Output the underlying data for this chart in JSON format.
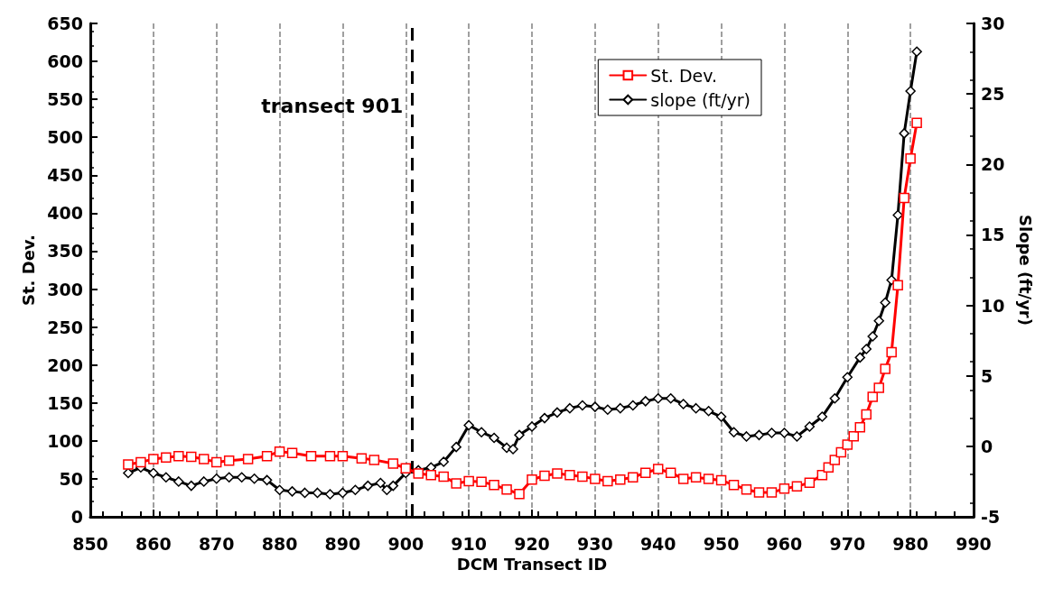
{
  "chart_data": {
    "type": "line",
    "xlabel": "DCM Transect ID",
    "ylabel": "St. Dev.",
    "y2label": "Slope (ft/yr)",
    "xlim": [
      850,
      990
    ],
    "xticks": [
      850,
      860,
      870,
      880,
      890,
      900,
      910,
      920,
      930,
      940,
      950,
      960,
      970,
      980,
      990
    ],
    "ylim": [
      0,
      650
    ],
    "yticks": [
      0,
      50,
      100,
      150,
      200,
      250,
      300,
      350,
      400,
      450,
      500,
      550,
      600,
      650
    ],
    "y2lim": [
      -5,
      30
    ],
    "y2ticks": [
      -5,
      0,
      5,
      10,
      15,
      20,
      25,
      30
    ],
    "grid": "x",
    "legend": "top right",
    "line_style": "solid",
    "ref_lines": [
      {
        "axis": "x",
        "value": 901,
        "label": "transect 901",
        "color": "#000000",
        "line_style": "dashed"
      }
    ],
    "series": [
      {
        "name": "St. Dev.",
        "color": "#ff0000",
        "marker": "square",
        "x": [
          856,
          858,
          860,
          862,
          864,
          866,
          868,
          870,
          872,
          875,
          878,
          880,
          882,
          885,
          888,
          890,
          893,
          895,
          898,
          900,
          902,
          904,
          906,
          908,
          910,
          912,
          914,
          916,
          918,
          920,
          922,
          924,
          926,
          928,
          930,
          932,
          934,
          936,
          938,
          940,
          942,
          944,
          946,
          948,
          950,
          952,
          954,
          956,
          958,
          960,
          962,
          964,
          966,
          967,
          968,
          969,
          970,
          971,
          972,
          973,
          974,
          975,
          976,
          977,
          978,
          979,
          980,
          981
        ],
        "values": [
          69,
          72,
          76,
          78,
          80,
          79,
          76,
          72,
          74,
          76,
          80,
          86,
          84,
          80,
          80,
          80,
          77,
          75,
          70,
          64,
          57,
          55,
          53,
          44,
          47,
          46,
          42,
          36,
          30,
          49,
          54,
          57,
          55,
          53,
          50,
          47,
          49,
          52,
          58,
          63,
          58,
          50,
          52,
          50,
          48,
          42,
          36,
          32,
          32,
          37,
          40,
          45,
          55,
          65,
          75,
          85,
          95,
          106,
          118,
          135,
          158,
          170,
          195,
          217,
          305,
          420,
          472,
          519
        ]
      },
      {
        "name": "slope (ft/yr)",
        "color": "#000000",
        "marker": "diamond",
        "axis": "y2",
        "x": [
          856,
          858,
          860,
          862,
          864,
          866,
          868,
          870,
          872,
          874,
          876,
          878,
          880,
          882,
          884,
          886,
          888,
          890,
          892,
          894,
          896,
          897,
          898,
          900,
          902,
          904,
          906,
          908,
          910,
          912,
          914,
          916,
          917,
          918,
          920,
          922,
          924,
          926,
          928,
          930,
          932,
          934,
          936,
          938,
          940,
          942,
          944,
          946,
          948,
          950,
          952,
          954,
          956,
          958,
          960,
          962,
          964,
          966,
          968,
          970,
          972,
          973,
          974,
          975,
          976,
          977,
          978,
          979,
          980,
          981
        ],
        "values": [
          -1.9,
          -1.5,
          -1.9,
          -2.2,
          -2.5,
          -2.8,
          -2.5,
          -2.3,
          -2.2,
          -2.2,
          -2.3,
          -2.4,
          -3.1,
          -3.2,
          -3.3,
          -3.3,
          -3.4,
          -3.3,
          -3.1,
          -2.8,
          -2.6,
          -3.1,
          -2.8,
          -1.9,
          -1.7,
          -1.5,
          -1.1,
          -0.05,
          1.5,
          1.0,
          0.6,
          -0.1,
          -0.2,
          0.8,
          1.4,
          2.0,
          2.4,
          2.7,
          2.9,
          2.8,
          2.6,
          2.7,
          2.9,
          3.2,
          3.4,
          3.4,
          3.0,
          2.7,
          2.5,
          2.1,
          1.0,
          0.7,
          0.8,
          0.95,
          0.95,
          0.7,
          1.4,
          2.1,
          3.4,
          4.9,
          6.3,
          6.9,
          7.8,
          8.9,
          10.2,
          11.8,
          16.4,
          22.2,
          25.2,
          28.0
        ]
      }
    ]
  }
}
